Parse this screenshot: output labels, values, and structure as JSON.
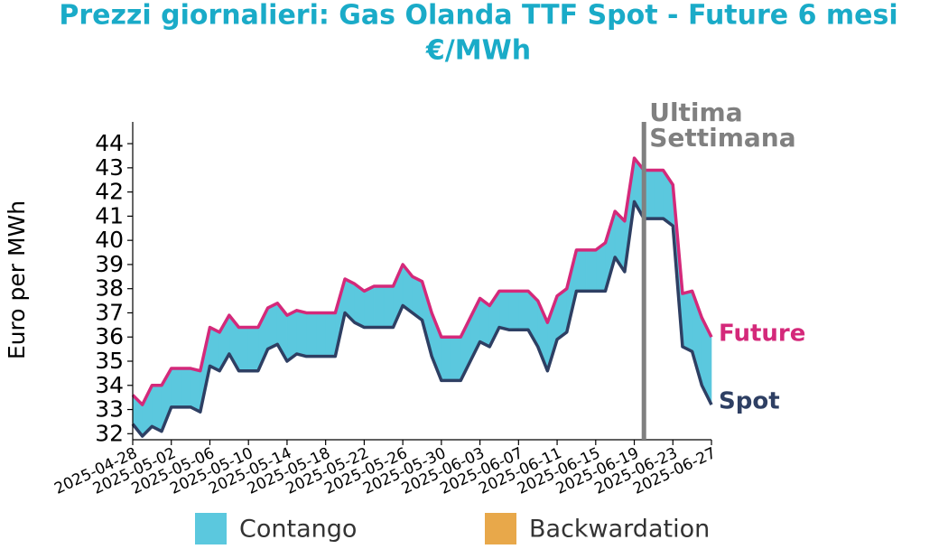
{
  "chart_data": {
    "type": "line",
    "title": "Prezzi giornalieri: Gas Olanda TTF Spot - Future 6 mesi",
    "subtitle": "€/MWh",
    "y_label": "Euro per MWh",
    "x": [
      "2025-04-28",
      "2025-04-29",
      "2025-04-30",
      "2025-05-01",
      "2025-05-02",
      "2025-05-03",
      "2025-05-04",
      "2025-05-05",
      "2025-05-06",
      "2025-05-07",
      "2025-05-08",
      "2025-05-09",
      "2025-05-10",
      "2025-05-11",
      "2025-05-12",
      "2025-05-13",
      "2025-05-14",
      "2025-05-15",
      "2025-05-16",
      "2025-05-17",
      "2025-05-18",
      "2025-05-19",
      "2025-05-20",
      "2025-05-21",
      "2025-05-22",
      "2025-05-23",
      "2025-05-24",
      "2025-05-25",
      "2025-05-26",
      "2025-05-27",
      "2025-05-28",
      "2025-05-29",
      "2025-05-30",
      "2025-05-31",
      "2025-06-01",
      "2025-06-02",
      "2025-06-03",
      "2025-06-04",
      "2025-06-05",
      "2025-06-06",
      "2025-06-07",
      "2025-06-08",
      "2025-06-09",
      "2025-06-10",
      "2025-06-11",
      "2025-06-12",
      "2025-06-13",
      "2025-06-14",
      "2025-06-15",
      "2025-06-16",
      "2025-06-17",
      "2025-06-18",
      "2025-06-19",
      "2025-06-20",
      "2025-06-21",
      "2025-06-22",
      "2025-06-23",
      "2025-06-24",
      "2025-06-25",
      "2025-06-26",
      "2025-06-27"
    ],
    "series": [
      {
        "name": "Future",
        "color": "#d4297a",
        "values": [
          33.6,
          33.2,
          34.0,
          34.0,
          34.7,
          34.7,
          34.7,
          34.6,
          36.4,
          36.2,
          36.9,
          36.4,
          36.4,
          36.4,
          37.2,
          37.4,
          36.9,
          37.1,
          37.0,
          37.0,
          37.0,
          37.0,
          38.4,
          38.2,
          37.9,
          38.1,
          38.1,
          38.1,
          39.0,
          38.5,
          38.3,
          37.0,
          36.0,
          36.0,
          36.0,
          36.8,
          37.6,
          37.3,
          37.9,
          37.9,
          37.9,
          37.9,
          37.5,
          36.6,
          37.7,
          38.0,
          39.6,
          39.6,
          39.6,
          39.9,
          41.2,
          40.8,
          43.4,
          42.9,
          42.9,
          42.9,
          42.3,
          37.8,
          37.9,
          36.8,
          36.0
        ]
      },
      {
        "name": "Spot",
        "color": "#2e3f63",
        "values": [
          32.4,
          31.9,
          32.3,
          32.1,
          33.1,
          33.1,
          33.1,
          32.9,
          34.8,
          34.6,
          35.3,
          34.6,
          34.6,
          34.6,
          35.5,
          35.7,
          35.0,
          35.3,
          35.2,
          35.2,
          35.2,
          35.2,
          37.0,
          36.6,
          36.4,
          36.4,
          36.4,
          36.4,
          37.3,
          37.0,
          36.7,
          35.2,
          34.2,
          34.2,
          34.2,
          35.0,
          35.8,
          35.6,
          36.4,
          36.3,
          36.3,
          36.3,
          35.6,
          34.6,
          35.9,
          36.2,
          37.9,
          37.9,
          37.9,
          37.9,
          39.3,
          38.7,
          41.6,
          40.9,
          40.9,
          40.9,
          40.6,
          35.6,
          35.4,
          34.0,
          33.2
        ]
      }
    ],
    "fill_legend": [
      {
        "name": "Contango",
        "color": "#5bc8de"
      },
      {
        "name": "Backwardation",
        "color": "#e8a84a"
      }
    ],
    "annotation": {
      "x": "2025-06-20",
      "label": [
        "Ultima",
        "Settimana"
      ],
      "color": "#808080"
    },
    "xlim": [
      "2025-04-28",
      "2025-06-27"
    ],
    "xticks": [
      "2025-04-28",
      "2025-05-02",
      "2025-05-06",
      "2025-05-10",
      "2025-05-14",
      "2025-05-18",
      "2025-05-22",
      "2025-05-26",
      "2025-05-30",
      "2025-06-03",
      "2025-06-07",
      "2025-06-11",
      "2025-06-15",
      "2025-06-19",
      "2025-06-23",
      "2025-06-27"
    ],
    "ylim": [
      31.75,
      44.9
    ],
    "yticks": [
      32,
      33,
      34,
      35,
      36,
      37,
      38,
      39,
      40,
      41,
      42,
      43,
      44
    ]
  }
}
